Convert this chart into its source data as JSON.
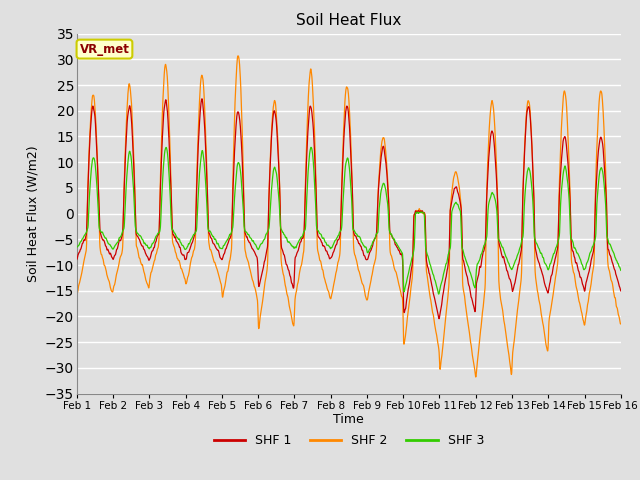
{
  "title": "Soil Heat Flux",
  "xlabel": "Time",
  "ylabel": "Soil Heat Flux (W/m2)",
  "ylim": [
    -35,
    35
  ],
  "yticks": [
    -35,
    -30,
    -25,
    -20,
    -15,
    -10,
    -5,
    0,
    5,
    10,
    15,
    20,
    25,
    30,
    35
  ],
  "xtick_labels": [
    "Feb 1",
    "Feb 2",
    "Feb 3",
    "Feb 4",
    "Feb 5",
    "Feb 6",
    "Feb 7",
    "Feb 8",
    "Feb 9",
    "Feb 10",
    "Feb 11",
    "Feb 12",
    "Feb 13",
    "Feb 14",
    "Feb 15",
    "Feb 16"
  ],
  "background_color": "#e0e0e0",
  "plot_bg_color": "#e0e0e0",
  "grid_color": "#ffffff",
  "line_colors": [
    "#cc0000",
    "#ff8800",
    "#33cc00"
  ],
  "line_labels": [
    "SHF 1",
    "SHF 2",
    "SHF 3"
  ],
  "annotation_text": "VR_met",
  "annotation_fg": "#8b0000",
  "annotation_bg": "#ffffcc",
  "annotation_border": "#cccc00",
  "n_days": 15,
  "points_per_day": 144
}
